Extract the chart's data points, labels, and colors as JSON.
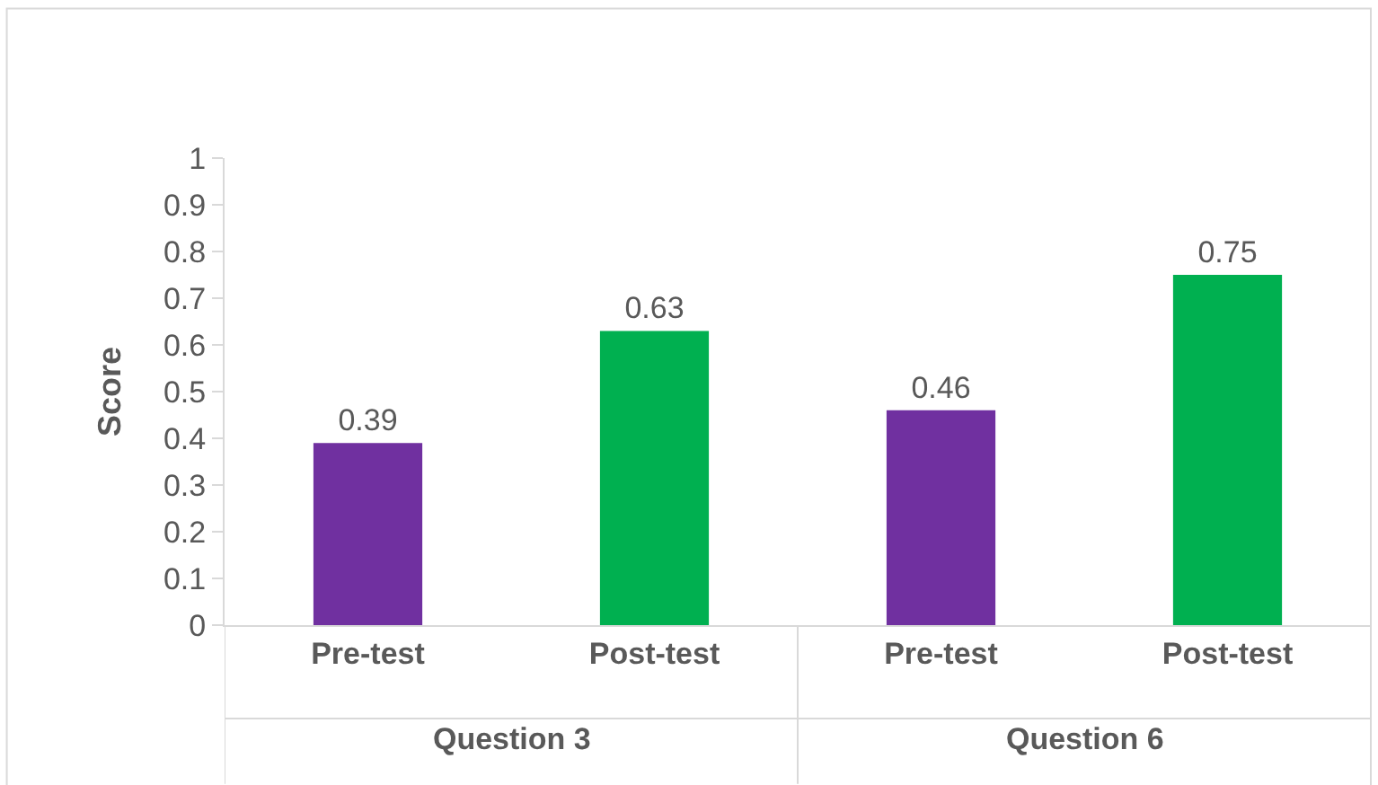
{
  "chart_data": {
    "type": "bar",
    "ylabel": "Score",
    "categories": [
      "Pre-test",
      "Post-test",
      "Pre-test",
      "Post-test"
    ],
    "values": [
      0.39,
      0.63,
      0.46,
      0.75
    ],
    "colors": [
      "#7030a0",
      "#00b050",
      "#7030a0",
      "#00b050"
    ],
    "annotations": [
      "Question 3",
      "Question 6"
    ],
    "ylim": [
      0,
      1
    ],
    "yticks": [
      0,
      0.1,
      0.2,
      0.3,
      0.4,
      0.5,
      0.6,
      0.7,
      0.8,
      0.9,
      1
    ],
    "data_labels": true,
    "grid": false,
    "legend": false
  }
}
